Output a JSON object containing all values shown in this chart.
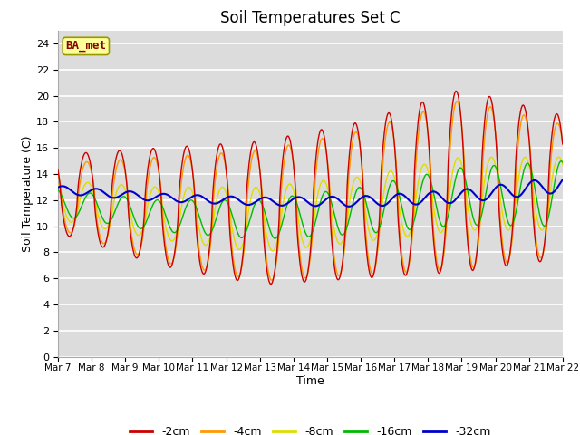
{
  "title": "Soil Temperatures Set C",
  "xlabel": "Time",
  "ylabel": "Soil Temperature (C)",
  "ylim": [
    0,
    25
  ],
  "yticks": [
    0,
    2,
    4,
    6,
    8,
    10,
    12,
    14,
    16,
    18,
    20,
    22,
    24
  ],
  "xtick_labels": [
    "Mar 7",
    "Mar 8",
    "Mar 9",
    "Mar 10",
    "Mar 11",
    "Mar 12",
    "Mar 13",
    "Mar 14",
    "Mar 15",
    "Mar 16",
    "Mar 17",
    "Mar 18",
    "Mar 19",
    "Mar 20",
    "Mar 21",
    "Mar 22"
  ],
  "colors": {
    "-2cm": "#cc0000",
    "-4cm": "#ff9900",
    "-8cm": "#dddd00",
    "-16cm": "#00bb00",
    "-32cm": "#0000cc"
  },
  "legend_labels": [
    "-2cm",
    "-4cm",
    "-8cm",
    "-16cm",
    "-32cm"
  ],
  "plot_bg": "#dcdcdc",
  "annotation_text": "BA_met",
  "annotation_bg": "#ffff99",
  "annotation_border": "#999900",
  "n_points": 720,
  "n_days": 15
}
